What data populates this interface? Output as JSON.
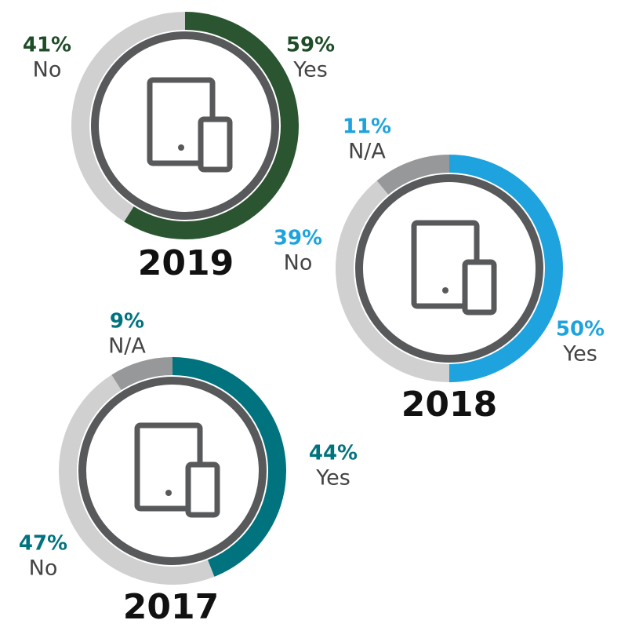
{
  "chart_data": [
    {
      "type": "donut",
      "title": "2019",
      "categories": [
        "Yes",
        "No"
      ],
      "values": [
        59,
        41
      ],
      "value_labels": [
        "59%",
        "41%"
      ],
      "colors": [
        "#2b5530",
        "#d0d0d0"
      ],
      "label_color": "#1f4d28"
    },
    {
      "type": "donut",
      "title": "2018",
      "categories": [
        "Yes",
        "No",
        "N/A"
      ],
      "values": [
        50,
        39,
        11
      ],
      "value_labels": [
        "50%",
        "39%",
        "11%"
      ],
      "colors": [
        "#1ea3de",
        "#d0d0d0",
        "#97989a"
      ],
      "label_color": "#1ea3de"
    },
    {
      "type": "donut",
      "title": "2017",
      "categories": [
        "Yes",
        "No",
        "N/A"
      ],
      "values": [
        44,
        47,
        9
      ],
      "value_labels": [
        "44%",
        "47%",
        "9%"
      ],
      "colors": [
        "#00737e",
        "#d0d0d0",
        "#97989a"
      ],
      "label_color": "#00737e"
    }
  ]
}
